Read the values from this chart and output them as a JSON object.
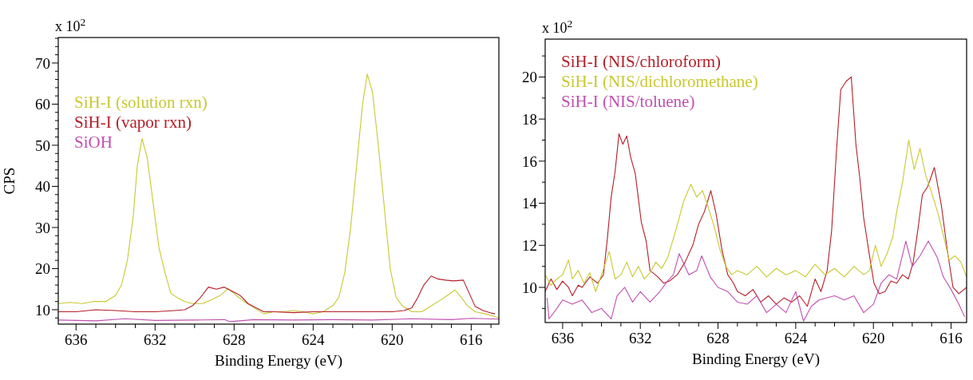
{
  "chart_data": [
    {
      "type": "line",
      "xlabel": "Binding Energy (eV)",
      "ylabel": "CPS",
      "annotations": [
        "x 10$^{2}$"
      ],
      "legend": "top left",
      "xlim": [
        636.9,
        614.6
      ],
      "ylim": [
        6.5,
        76.2
      ],
      "xticks": [
        636,
        {
          "value": 635,
          "label": null
        },
        {
          "value": 634,
          "label": null
        },
        {
          "value": 633,
          "label": null
        },
        632,
        {
          "value": 631,
          "label": null
        },
        {
          "value": 630,
          "label": null
        },
        {
          "value": 629,
          "label": null
        },
        628,
        {
          "value": 627,
          "label": null
        },
        {
          "value": 626,
          "label": null
        },
        {
          "value": 625,
          "label": null
        },
        624,
        {
          "value": 623,
          "label": null
        },
        {
          "value": 622,
          "label": null
        },
        {
          "value": 621,
          "label": null
        },
        620,
        {
          "value": 619,
          "label": null
        },
        {
          "value": 618,
          "label": null
        },
        {
          "value": 617,
          "label": null
        },
        616,
        {
          "value": 615,
          "label": null
        }
      ],
      "yticks": [
        {
          "value": 8,
          "label": null
        },
        10,
        {
          "value": 12,
          "label": null
        },
        {
          "value": 14,
          "label": null
        },
        {
          "value": 16,
          "label": null
        },
        {
          "value": 18,
          "label": null
        },
        20,
        {
          "value": 22,
          "label": null
        },
        {
          "value": 24,
          "label": null
        },
        {
          "value": 26,
          "label": null
        },
        {
          "value": 28,
          "label": null
        },
        30,
        {
          "value": 32,
          "label": null
        },
        {
          "value": 34,
          "label": null
        },
        {
          "value": 36,
          "label": null
        },
        {
          "value": 38,
          "label": null
        },
        40,
        {
          "value": 42,
          "label": null
        },
        {
          "value": 44,
          "label": null
        },
        {
          "value": 46,
          "label": null
        },
        {
          "value": 48,
          "label": null
        },
        50,
        {
          "value": 52,
          "label": null
        },
        {
          "value": 54,
          "label": null
        },
        {
          "value": 56,
          "label": null
        },
        {
          "value": 58,
          "label": null
        },
        60,
        {
          "value": 62,
          "label": null
        },
        {
          "value": 64,
          "label": null
        },
        {
          "value": 66,
          "label": null
        },
        {
          "value": 68,
          "label": null
        },
        70,
        {
          "value": 72,
          "label": null
        },
        {
          "value": 74,
          "label": null
        },
        {
          "value": 76,
          "label": null
        }
      ],
      "series": [
        {
          "name": "SiH-I (solution rxn)",
          "color": "#c8c832",
          "x": [
            636.9,
            636.3,
            635.7,
            635.1,
            634.5,
            634.0,
            633.7,
            633.4,
            633.1,
            632.9,
            632.66,
            632.4,
            632.1,
            631.8,
            631.5,
            631.2,
            630.9,
            630.5,
            630.1,
            629.6,
            629.1,
            628.7,
            628.3,
            627.9,
            627.5,
            627.0,
            626.5,
            626.0,
            625.5,
            625.0,
            624.5,
            624.0,
            623.5,
            623.0,
            622.7,
            622.4,
            622.1,
            621.8,
            621.5,
            621.26,
            621.0,
            620.7,
            620.4,
            620.1,
            619.8,
            619.5,
            619.0,
            618.5,
            618.0,
            617.5,
            617.2,
            616.82,
            616.5,
            616.2,
            615.8,
            615.3,
            614.9,
            614.6
          ],
          "values": [
            11.5,
            11.8,
            11.5,
            12,
            12,
            13.5,
            16,
            22,
            33,
            45,
            51.6,
            47,
            36,
            25,
            19,
            14,
            13,
            12,
            11.5,
            11.5,
            12.5,
            13.5,
            15.1,
            13.5,
            12,
            10.5,
            9,
            9.5,
            9.5,
            9.8,
            9.5,
            9,
            9.5,
            11,
            13,
            19,
            30,
            45,
            60,
            67.3,
            63,
            50,
            35,
            20,
            13,
            11,
            9.5,
            9.5,
            11,
            12.5,
            13.5,
            14.8,
            13,
            11,
            9.5,
            9,
            8.5,
            8
          ]
        },
        {
          "name": "SiH-I (vapor rxn)",
          "color": "#b41e28",
          "x": [
            636.9,
            636.0,
            635.0,
            634.0,
            633.0,
            632.0,
            631.0,
            630.5,
            630.1,
            629.7,
            629.3,
            628.9,
            628.5,
            628.1,
            627.7,
            627.3,
            626.9,
            626.5,
            626.0,
            625.0,
            624.0,
            623.0,
            622.0,
            621.0,
            620.0,
            619.4,
            619.0,
            618.7,
            618.4,
            618.03,
            617.7,
            617.3,
            616.9,
            616.4,
            616.1,
            615.8,
            615.4,
            615.0,
            614.8
          ],
          "values": [
            9.5,
            9.5,
            10,
            9.8,
            9.5,
            9.5,
            9.8,
            10,
            11,
            13,
            15.5,
            15,
            15.5,
            14.5,
            13.5,
            11.5,
            10.5,
            9.5,
            9.5,
            9.3,
            9.5,
            9.5,
            9.5,
            9.5,
            9.5,
            9.8,
            10.5,
            13,
            16,
            18.2,
            17.5,
            17.2,
            17,
            17.2,
            14,
            10.8,
            9.8,
            9.2,
            9
          ]
        },
        {
          "name": "SiOH",
          "color": "#c050b0",
          "x": [
            636.9,
            635.0,
            633.5,
            632.0,
            630.0,
            628.5,
            628.2,
            627.0,
            625.0,
            623.0,
            621.0,
            619.0,
            617.0,
            616.0,
            614.6
          ],
          "values": [
            7.5,
            7.3,
            7.8,
            7.4,
            7.5,
            7.6,
            7.1,
            7.6,
            7.5,
            7.6,
            7.5,
            7.8,
            7.6,
            7.9,
            7.7
          ]
        }
      ]
    },
    {
      "type": "line",
      "xlabel": "Binding Energy (eV)",
      "annotations": [
        "x 10$^{2}$"
      ],
      "legend": "top left",
      "xlim": [
        636.9,
        615.2
      ],
      "ylim": [
        8.33,
        21.8
      ],
      "xticks": [
        636,
        {
          "value": 635,
          "label": null
        },
        {
          "value": 634,
          "label": null
        },
        {
          "value": 633,
          "label": null
        },
        632,
        {
          "value": 631,
          "label": null
        },
        {
          "value": 630,
          "label": null
        },
        {
          "value": 629,
          "label": null
        },
        628,
        {
          "value": 627,
          "label": null
        },
        {
          "value": 626,
          "label": null
        },
        {
          "value": 625,
          "label": null
        },
        624,
        {
          "value": 623,
          "label": null
        },
        {
          "value": 622,
          "label": null
        },
        {
          "value": 621,
          "label": null
        },
        620,
        {
          "value": 619,
          "label": null
        },
        {
          "value": 618,
          "label": null
        },
        {
          "value": 617,
          "label": null
        },
        616
      ],
      "yticks": [
        {
          "value": 9,
          "label": null
        },
        10,
        {
          "value": 11,
          "label": null
        },
        12,
        {
          "value": 13,
          "label": null
        },
        14,
        {
          "value": 15,
          "label": null
        },
        16,
        {
          "value": 17,
          "label": null
        },
        18,
        {
          "value": 19,
          "label": null
        },
        20,
        {
          "value": 21,
          "label": null
        }
      ],
      "series": [
        {
          "name": "SiH-I (NIS/chloroform)",
          "color": "#b41e28",
          "x": [
            636.9,
            636.6,
            636.3,
            636.0,
            635.7,
            635.5,
            635.2,
            635.0,
            634.6,
            634.2,
            633.9,
            633.7,
            633.5,
            633.3,
            633.1,
            632.9,
            632.7,
            632.5,
            632.26,
            631.95,
            631.7,
            631.5,
            631.1,
            630.8,
            630.5,
            630.1,
            629.7,
            629.3,
            629.0,
            628.7,
            628.37,
            628.1,
            627.8,
            627.5,
            627.2,
            627.0,
            626.6,
            626.2,
            625.8,
            625.4,
            625.0,
            624.6,
            624.2,
            623.8,
            623.4,
            623.0,
            622.7,
            622.38,
            622.15,
            621.9,
            621.68,
            621.4,
            621.14,
            620.9,
            620.7,
            620.5,
            620.2,
            619.97,
            619.7,
            619.4,
            619.1,
            618.8,
            618.5,
            618.2,
            617.95,
            617.7,
            617.48,
            617.2,
            616.86,
            616.5,
            616.2,
            615.9,
            615.6,
            615.2
          ],
          "values": [
            9.8,
            10.4,
            9.9,
            10.3,
            10,
            9.6,
            10.1,
            10,
            10.5,
            10.2,
            10.6,
            12.3,
            14.3,
            15.5,
            17.3,
            16.8,
            17.2,
            16.2,
            15.4,
            13.1,
            12.2,
            10.8,
            10.5,
            10.2,
            10.3,
            10.6,
            11.2,
            12,
            13,
            13.6,
            14.6,
            13.5,
            11.8,
            10.6,
            10.2,
            9.8,
            9.6,
            9.9,
            9.3,
            9.6,
            9.2,
            9.5,
            9.3,
            9.6,
            9.1,
            10.4,
            9.8,
            10.8,
            12.7,
            16.5,
            19.4,
            19.8,
            20,
            16.8,
            15.2,
            13.3,
            11.5,
            10.2,
            9.7,
            9.8,
            10.3,
            10.2,
            10.6,
            10.4,
            11.2,
            12.8,
            14.4,
            14.8,
            15.7,
            13.9,
            11.8,
            10,
            9.7,
            10
          ]
        },
        {
          "name": "SiH-I (NIS/dichloromethane)",
          "color": "#c8c832",
          "x": [
            636.9,
            636.6,
            636.3,
            636.0,
            635.7,
            635.5,
            635.2,
            634.9,
            634.6,
            634.3,
            634.0,
            633.6,
            633.3,
            633.0,
            632.7,
            632.4,
            632.1,
            631.8,
            631.5,
            631.2,
            630.9,
            630.6,
            630.24,
            630.0,
            629.77,
            629.4,
            629.1,
            628.8,
            628.5,
            628.2,
            627.9,
            627.6,
            627.3,
            627.0,
            626.5,
            626.0,
            625.5,
            625.0,
            624.5,
            624.0,
            623.5,
            623.0,
            622.5,
            622.0,
            621.5,
            621.0,
            620.5,
            620.2,
            619.9,
            619.6,
            619.3,
            619.0,
            618.8,
            618.5,
            618.18,
            617.9,
            617.6,
            617.3,
            617.0,
            616.7,
            616.4,
            616.1,
            615.8,
            615.5,
            615.2
          ],
          "values": [
            10.6,
            10.1,
            10.4,
            10.6,
            11.3,
            10.4,
            10.8,
            10.2,
            10.7,
            9.8,
            10.6,
            11.7,
            10.4,
            10.6,
            11.2,
            10.5,
            11,
            10.4,
            10.7,
            11.2,
            10.9,
            11.4,
            12.5,
            13.3,
            14.1,
            14.9,
            14.3,
            14.6,
            13.8,
            12.9,
            11.8,
            11,
            10.6,
            10.8,
            10.6,
            11,
            10.5,
            10.9,
            10.6,
            10.8,
            10.5,
            11.1,
            10.6,
            10.9,
            10.5,
            11,
            10.6,
            10.8,
            12,
            11,
            11.6,
            12.4,
            13.6,
            15,
            17,
            15.6,
            16.6,
            15.3,
            14.5,
            13.6,
            12.5,
            11.3,
            11.5,
            11.2,
            10.5
          ]
        },
        {
          "name": "SiH-I (NIS/toluene)",
          "color": "#c050b0",
          "x": [
            636.8,
            636.7,
            636.3,
            636.0,
            635.5,
            635.0,
            634.5,
            634.0,
            633.5,
            633.2,
            632.8,
            632.4,
            632.0,
            631.5,
            631.0,
            630.6,
            630.3,
            630.0,
            629.5,
            629.1,
            628.84,
            628.4,
            628.0,
            627.5,
            627.0,
            626.5,
            626.0,
            625.5,
            625.0,
            624.5,
            624.0,
            623.6,
            623.2,
            622.8,
            622.0,
            621.5,
            621.0,
            620.5,
            620.0,
            619.6,
            619.2,
            618.8,
            618.33,
            618.0,
            617.6,
            617.17,
            616.7,
            616.4,
            616.0,
            615.6,
            615.3
          ],
          "values": [
            9.5,
            8.5,
            9,
            9.4,
            9.2,
            9.4,
            8.8,
            9,
            8.5,
            9.6,
            10,
            9.3,
            9.8,
            9.3,
            9.8,
            10.3,
            10.6,
            11.6,
            10.6,
            10.8,
            11.5,
            10.5,
            10,
            9.8,
            9.3,
            9.2,
            9.6,
            8.8,
            9.2,
            8.8,
            9.8,
            8.4,
            9.1,
            9.4,
            9.6,
            9.4,
            9.6,
            8.8,
            9.2,
            10.2,
            10.6,
            10.4,
            12.2,
            11,
            11.5,
            12.2,
            11.4,
            10.5,
            9.9,
            9.2,
            8.6
          ]
        }
      ]
    }
  ]
}
